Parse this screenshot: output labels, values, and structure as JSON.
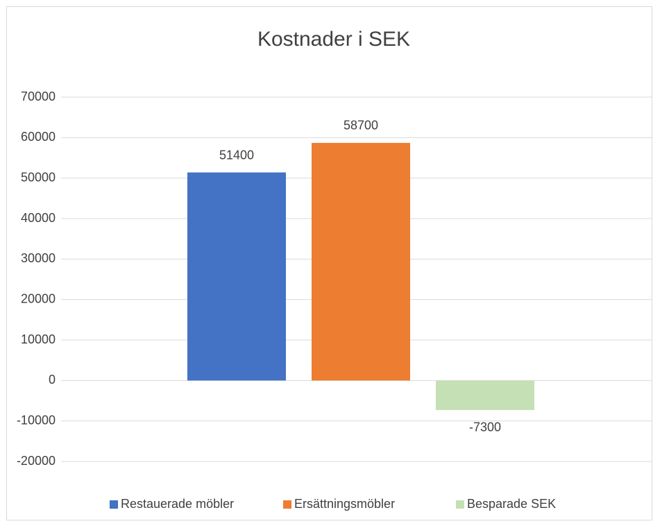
{
  "chart_data": {
    "type": "bar",
    "title": "Kostnader i SEK",
    "categories": [
      null
    ],
    "series": [
      {
        "name": "Restauerade möbler",
        "color": "#4472c4",
        "values": [
          51400
        ]
      },
      {
        "name": "Ersättningsmöbler",
        "color": "#ed7d31",
        "values": [
          58700
        ]
      },
      {
        "name": "Besparade SEK",
        "color": "#c5e0b4",
        "values": [
          -7300
        ]
      }
    ],
    "ylim": [
      -20000,
      70000
    ],
    "yticks": [
      -20000,
      -10000,
      0,
      10000,
      20000,
      30000,
      40000,
      50000,
      60000,
      70000
    ],
    "grid": true,
    "legend": "bottom"
  }
}
